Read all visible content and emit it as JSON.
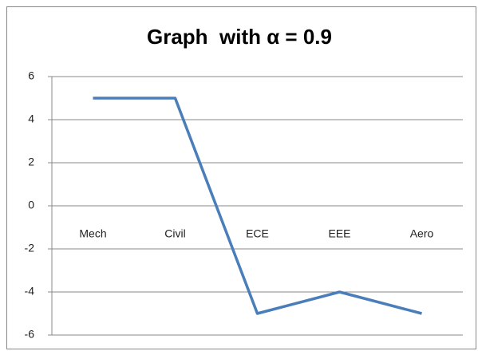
{
  "chart_data": {
    "type": "line",
    "title": "Graph  with α = 0.9",
    "categories": [
      "Mech",
      "Civil",
      "ECE",
      "EEE",
      "Aero"
    ],
    "series": [
      {
        "name": null,
        "color": "#4a7ebb",
        "values": [
          5,
          5,
          -5,
          -4,
          -5
        ]
      }
    ],
    "ylim": [
      -6,
      6
    ],
    "yticks": [
      -6,
      -4,
      -2,
      0,
      2,
      4,
      6
    ],
    "grid": true
  }
}
